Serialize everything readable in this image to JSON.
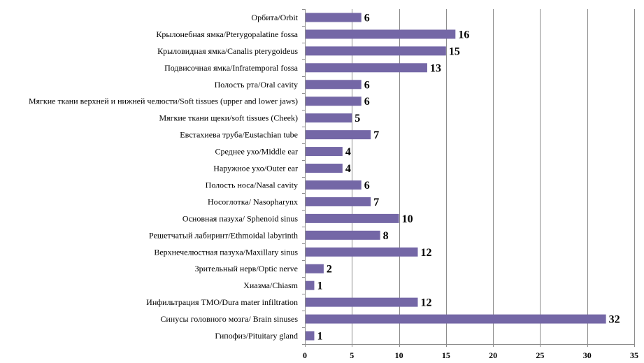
{
  "chart_data": {
    "type": "bar",
    "orientation": "horizontal",
    "categories": [
      "Орбита/Orbit",
      "Крылонебная ямка/Pterygopalatine  fossa",
      "Крыловидная ямка/Canalis pterygoideus",
      "Подвисочная ямка/Infratemporal  fossa",
      "Полость рта/Oral cavity",
      "Мягкие ткани  верхней и нижней челюсти/Soft tissues (upper and lower jaws)",
      "Мягкие ткани  щеки/soft tissues (Cheek)",
      "Евстахиева труба/Eustachian tube",
      "Среднее ухо/Middle  ear",
      "Наружное ухо/Outer ear",
      "Полость носа/Nasal cavity",
      "Носоглотка/ Nasopharynx",
      "Основная пазуха/  Sphenoid sinus",
      "Решетчатый лабиринт/Ethmoidal labyrinth",
      "Верхнечелюстная пазуха/Maxillary  sinus",
      "Зрительный нерв/Optic nerve",
      "Хиазма/Chiasm",
      "Инфильтрация ТМО/Dura mater infiltration",
      "Синусы головного мозга/ Brain sinuses",
      "Гипофиз/Pituitary  gland"
    ],
    "values": [
      6,
      16,
      15,
      13,
      6,
      6,
      5,
      7,
      4,
      4,
      6,
      7,
      10,
      8,
      12,
      2,
      1,
      12,
      32,
      1
    ],
    "xlim": [
      0,
      35
    ],
    "xticks": [
      "0",
      "5",
      "10",
      "15",
      "20",
      "25",
      "30",
      "35"
    ],
    "xtick_values": [
      0,
      5,
      10,
      15,
      20,
      25,
      30,
      35
    ],
    "grid": "vertical",
    "legend": "none",
    "colors": {
      "bar": "#7467A6",
      "grid": "#8C8C8C",
      "axis": "#8C8C8C",
      "text": "#000000"
    }
  }
}
